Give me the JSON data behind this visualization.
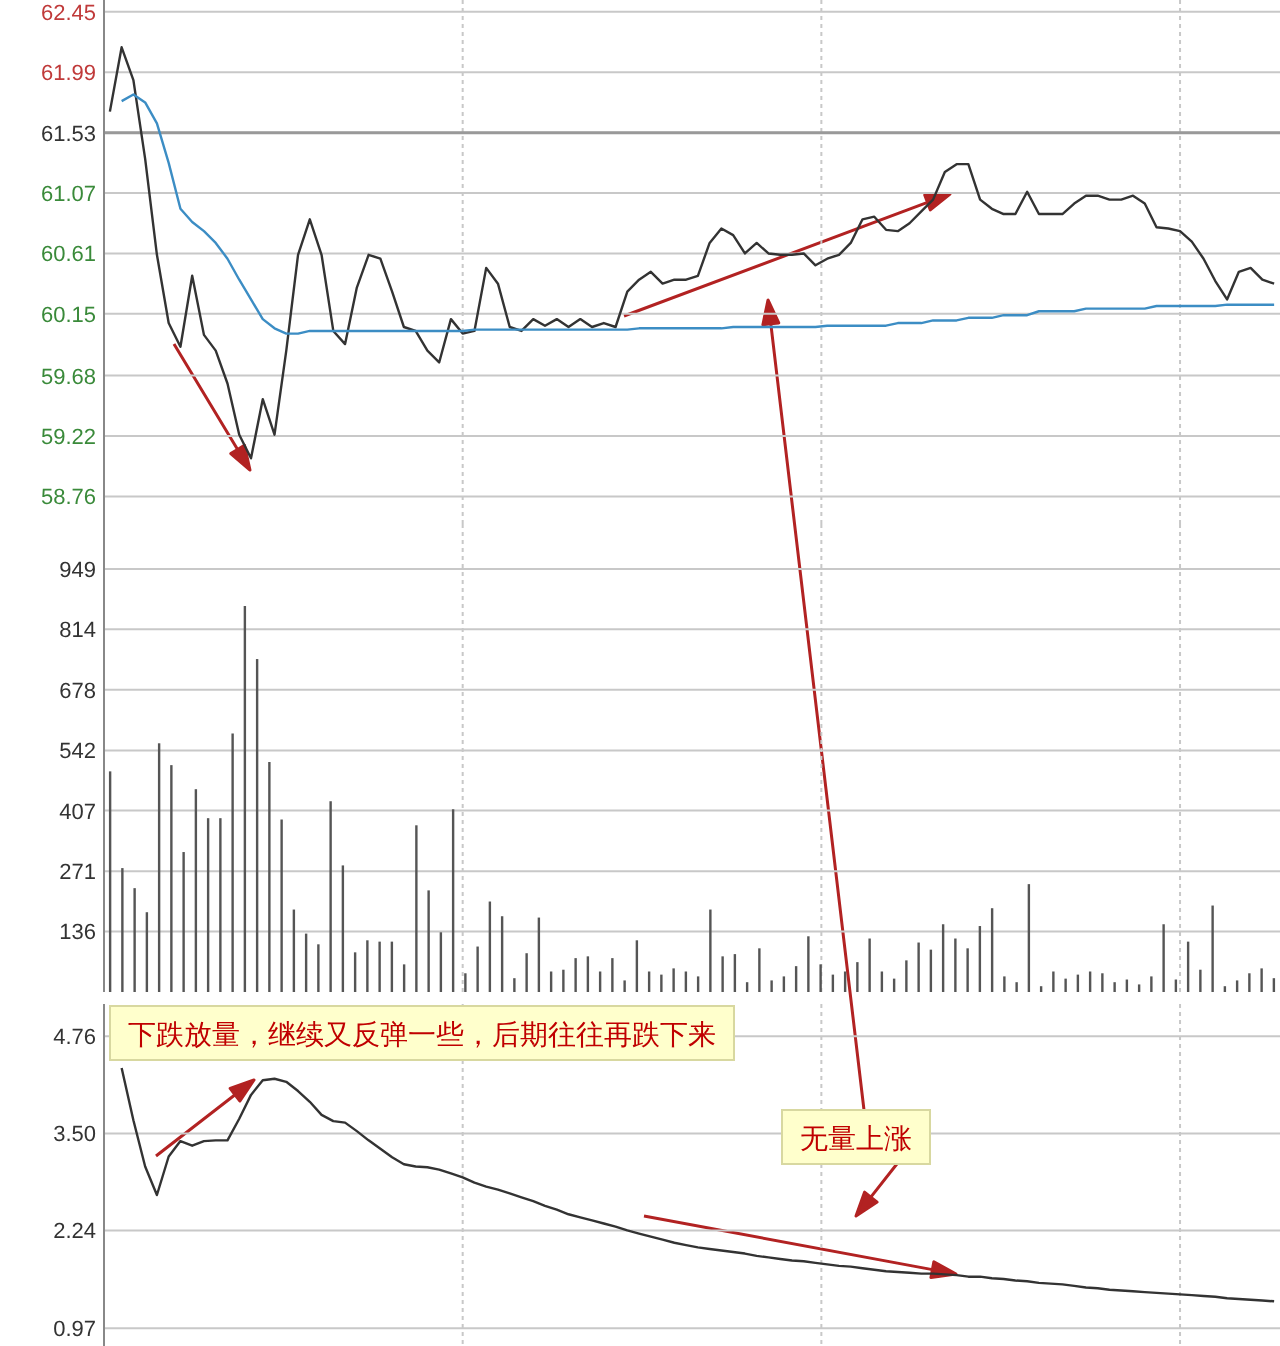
{
  "chart_data": [
    {
      "type": "line",
      "categories": [
        null,
        null,
        null,
        null,
        null,
        null,
        null,
        null,
        null,
        null,
        null,
        null,
        null,
        null,
        null,
        null,
        null,
        null,
        null,
        null,
        null,
        null,
        null,
        null,
        null,
        null,
        null,
        null,
        null,
        null,
        null,
        null,
        null,
        null,
        null,
        null,
        null,
        null,
        null,
        null,
        null,
        null,
        null,
        null,
        null,
        null,
        null,
        null,
        null,
        null,
        null,
        null,
        null,
        null,
        null,
        null,
        null,
        null,
        null,
        null,
        null,
        null,
        null,
        null,
        null,
        null,
        null,
        null,
        null,
        null,
        null,
        null,
        null,
        null,
        null,
        null,
        null,
        null,
        null,
        null,
        null,
        null,
        null,
        null,
        null,
        null,
        null,
        null,
        null,
        null,
        null,
        null,
        null,
        null,
        null,
        null,
        null,
        null,
        null,
        null
      ],
      "series": [
        {
          "color": "#333333",
          "values": [
            61.69,
            62.18,
            61.93,
            61.33,
            60.6,
            60.08,
            59.9,
            60.44,
            59.99,
            59.87,
            59.62,
            59.23,
            59.05,
            59.5,
            59.23,
            59.87,
            60.6,
            60.87,
            60.6,
            60.02,
            59.92,
            60.35,
            60.6,
            60.57,
            60.32,
            60.05,
            60.02,
            59.87,
            59.78,
            60.11,
            60.0,
            60.02,
            60.5,
            60.38,
            60.05,
            60.02,
            60.11,
            60.06,
            60.11,
            60.05,
            60.11,
            60.05,
            60.08,
            60.05,
            60.32,
            60.41,
            60.47,
            60.38,
            60.41,
            60.41,
            60.44,
            60.69,
            60.8,
            60.75,
            60.61,
            60.69,
            60.61,
            60.6,
            60.6,
            60.61,
            60.52,
            60.57,
            60.6,
            60.69,
            60.87,
            60.89,
            60.79,
            60.78,
            60.84,
            60.93,
            61.02,
            61.23,
            61.29,
            61.29,
            61.02,
            60.95,
            60.91,
            60.91,
            61.08,
            60.91,
            60.91,
            60.91,
            60.99,
            61.05,
            61.05,
            61.02,
            61.02,
            61.05,
            60.99,
            60.81,
            60.8,
            60.78,
            60.7,
            60.57,
            60.4,
            60.26,
            60.47,
            60.5,
            60.41,
            60.38
          ]
        },
        {
          "color": "#3c8dc4",
          "values": [
            null,
            61.77,
            61.82,
            61.76,
            61.6,
            61.3,
            60.95,
            60.85,
            60.78,
            60.69,
            60.57,
            60.41,
            60.26,
            60.11,
            60.04,
            60.0,
            60.0,
            60.02,
            60.02,
            60.02,
            60.02,
            60.02,
            60.02,
            60.02,
            60.02,
            60.02,
            60.02,
            60.02,
            60.02,
            60.02,
            60.02,
            60.03,
            60.03,
            60.03,
            60.03,
            60.03,
            60.03,
            60.03,
            60.03,
            60.03,
            60.03,
            60.03,
            60.03,
            60.03,
            60.03,
            60.04,
            60.04,
            60.04,
            60.04,
            60.04,
            60.04,
            60.04,
            60.04,
            60.05,
            60.05,
            60.05,
            60.05,
            60.05,
            60.05,
            60.05,
            60.05,
            60.06,
            60.06,
            60.06,
            60.06,
            60.06,
            60.06,
            60.08,
            60.08,
            60.08,
            60.1,
            60.1,
            60.1,
            60.12,
            60.12,
            60.12,
            60.14,
            60.14,
            60.14,
            60.17,
            60.17,
            60.17,
            60.17,
            60.19,
            60.19,
            60.19,
            60.19,
            60.19,
            60.19,
            60.21,
            60.21,
            60.21,
            60.21,
            60.21,
            60.21,
            60.22,
            60.22,
            60.22,
            60.22,
            60.22
          ]
        }
      ],
      "ylim": [
        58.55,
        62.54
      ],
      "yticks": [
        62.45,
        61.99,
        61.53,
        61.07,
        60.61,
        60.15,
        59.68,
        59.22,
        58.76
      ],
      "grid": true,
      "tick_labels": "y",
      "ref_lines": [
        {
          "axis": "y",
          "value": 61.53,
          "color": "#999999"
        }
      ]
    },
    {
      "type": "bar",
      "categories": [
        null,
        null,
        null,
        null,
        null,
        null,
        null,
        null,
        null,
        null,
        null,
        null,
        null,
        null,
        null,
        null,
        null,
        null,
        null,
        null,
        null,
        null,
        null,
        null,
        null,
        null,
        null,
        null,
        null,
        null,
        null,
        null,
        null,
        null,
        null,
        null,
        null,
        null,
        null,
        null,
        null,
        null,
        null,
        null,
        null,
        null,
        null,
        null,
        null,
        null,
        null,
        null,
        null,
        null,
        null,
        null,
        null,
        null,
        null,
        null,
        null,
        null,
        null,
        null,
        null,
        null,
        null,
        null,
        null,
        null,
        null,
        null,
        null,
        null,
        null,
        null,
        null,
        null,
        null,
        null,
        null,
        null,
        null,
        null,
        null,
        null,
        null,
        null,
        null,
        null,
        null,
        null,
        null,
        null,
        null,
        null
      ],
      "color": "#555555",
      "values": [
        495,
        278,
        233,
        179,
        558,
        509,
        314,
        455,
        390,
        390,
        580,
        866,
        747,
        516,
        387,
        185,
        131,
        107,
        428,
        284,
        89,
        116,
        113,
        113,
        62,
        374,
        228,
        134,
        410,
        42,
        102,
        203,
        170,
        31,
        87,
        167,
        46,
        50,
        76,
        80,
        46,
        76,
        26,
        116,
        46,
        39,
        53,
        46,
        35,
        185,
        80,
        85,
        22,
        98,
        26,
        35,
        58,
        125,
        62,
        39,
        46,
        67,
        120,
        46,
        30,
        71,
        111,
        95,
        152,
        120,
        98,
        148,
        188,
        35,
        22,
        242,
        13,
        46,
        30,
        39,
        46,
        42,
        22,
        28,
        17,
        35,
        152,
        28,
        113,
        50,
        194,
        13,
        26,
        42,
        53,
        31
      ],
      "ylim": [
        0,
        1050
      ],
      "yticks": [
        949,
        814,
        678,
        542,
        407,
        271,
        136
      ],
      "grid": true,
      "tick_labels": "y"
    },
    {
      "type": "line",
      "categories": [
        null,
        null,
        null,
        null,
        null,
        null,
        null,
        null,
        null,
        null,
        null,
        null,
        null,
        null,
        null,
        null,
        null,
        null,
        null,
        null,
        null,
        null,
        null,
        null,
        null,
        null,
        null,
        null,
        null,
        null,
        null,
        null,
        null,
        null,
        null,
        null,
        null,
        null,
        null,
        null,
        null,
        null,
        null,
        null,
        null,
        null,
        null,
        null,
        null,
        null,
        null,
        null,
        null,
        null,
        null,
        null,
        null,
        null,
        null,
        null,
        null,
        null,
        null,
        null,
        null,
        null,
        null,
        null,
        null,
        null,
        null,
        null,
        null,
        null,
        null,
        null,
        null,
        null,
        null,
        null,
        null,
        null,
        null,
        null,
        null,
        null,
        null,
        null,
        null,
        null,
        null,
        null,
        null,
        null,
        null,
        null,
        null,
        null,
        null,
        null
      ],
      "series": [
        {
          "color": "#333333",
          "values": [
            null,
            4.35,
            3.67,
            3.07,
            2.7,
            3.2,
            3.4,
            3.34,
            3.4,
            3.41,
            3.41,
            3.69,
            4.0,
            4.19,
            4.21,
            4.17,
            4.05,
            3.91,
            3.74,
            3.66,
            3.64,
            3.53,
            3.41,
            3.3,
            3.19,
            3.1,
            3.07,
            3.06,
            3.03,
            2.98,
            2.93,
            2.86,
            2.81,
            2.77,
            2.72,
            2.67,
            2.62,
            2.56,
            2.51,
            2.45,
            2.41,
            2.37,
            2.33,
            2.29,
            2.24,
            2.2,
            2.16,
            2.12,
            2.08,
            2.05,
            2.02,
            2.0,
            1.98,
            1.96,
            1.94,
            1.91,
            1.89,
            1.87,
            1.85,
            1.84,
            1.82,
            1.8,
            1.78,
            1.77,
            1.75,
            1.73,
            1.71,
            1.7,
            1.69,
            1.68,
            1.68,
            1.67,
            1.66,
            1.64,
            1.64,
            1.62,
            1.61,
            1.59,
            1.58,
            1.56,
            1.55,
            1.54,
            1.52,
            1.5,
            1.49,
            1.47,
            1.46,
            1.45,
            1.44,
            1.43,
            1.42,
            1.41,
            1.4,
            1.39,
            1.38,
            1.36,
            1.35,
            1.34,
            1.33,
            1.32
          ]
        }
      ],
      "ylim": [
        0.74,
        5.18
      ],
      "yticks": [
        4.76,
        {
          "value": 3.5,
          "label": "3.50"
        },
        2.24,
        0.97
      ],
      "grid": true,
      "tick_labels": "y",
      "annotations": [
        "下跌放量，继续又反弹一些，后期往往再跌下来",
        "无量上涨"
      ]
    }
  ]
}
